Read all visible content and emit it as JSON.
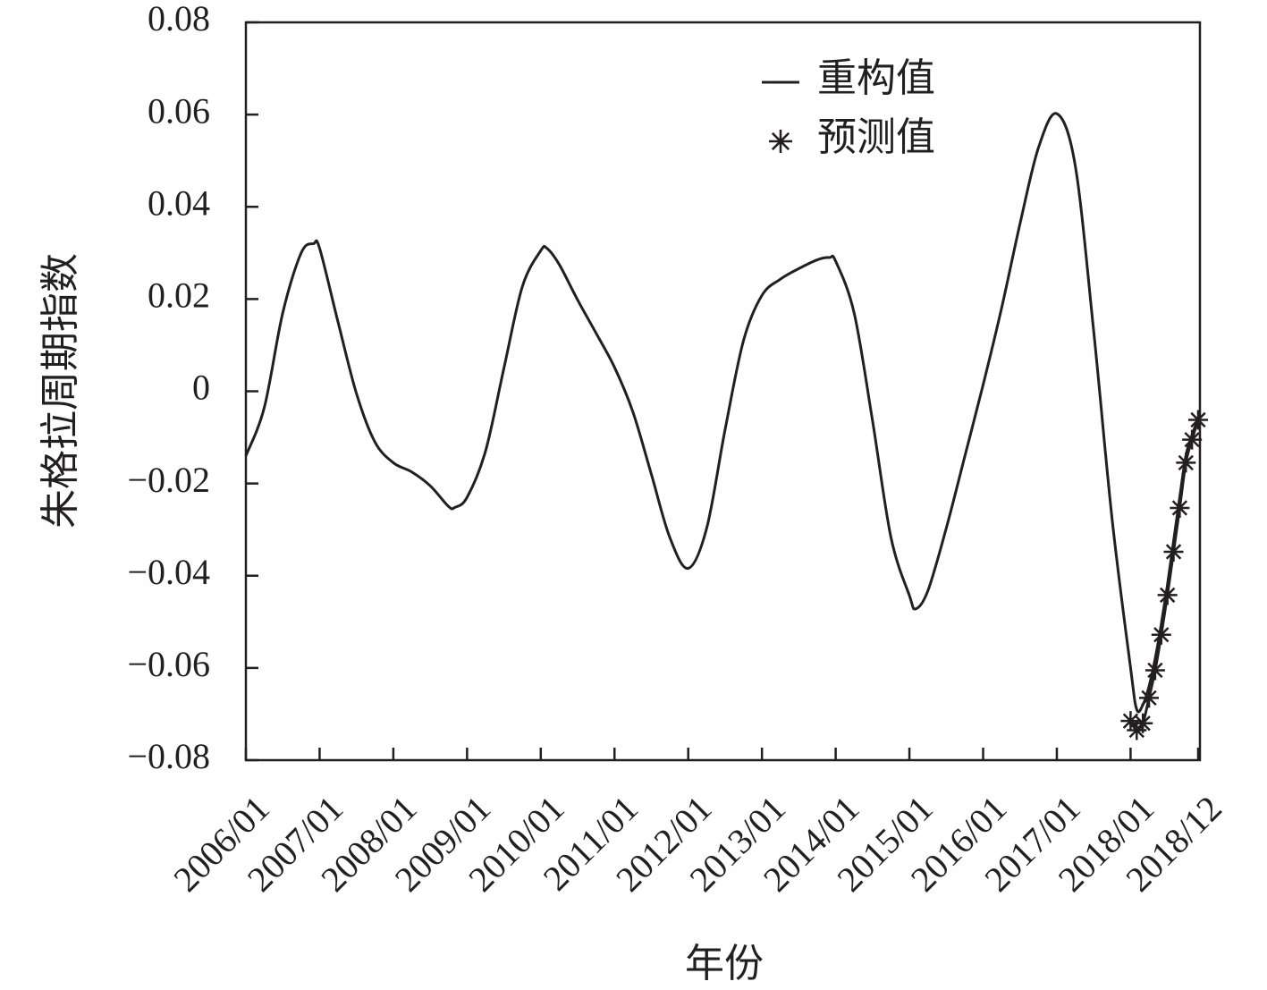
{
  "chart_data": {
    "type": "line",
    "x_label": "年份",
    "y_label": "朱格拉周期指数",
    "xlim": [
      "2006/01",
      "2018/12"
    ],
    "xticks": [
      "2006/01",
      "2007/01",
      "2008/01",
      "2009/01",
      "2010/01",
      "2011/01",
      "2012/01",
      "2013/01",
      "2014/01",
      "2015/01",
      "2016/01",
      "2017/01",
      "2018/01",
      "2018/12"
    ],
    "ylim": [
      -0.08,
      0.08
    ],
    "yticks": [
      {
        "value": -0.08,
        "label": "−0.08"
      },
      {
        "value": -0.06,
        "label": "−0.06"
      },
      {
        "value": -0.04,
        "label": "−0.04"
      },
      {
        "value": -0.02,
        "label": "−0.02"
      },
      0,
      0.02,
      0.04,
      0.06,
      0.08
    ],
    "legend": "upper right",
    "series": [
      {
        "name": "重构值",
        "color": "#231f20",
        "marker": "none",
        "x": [
          "2006/01",
          "2006/04",
          "2006/07",
          "2006/10",
          "2006/12",
          "2007/01",
          "2007/04",
          "2007/07",
          "2007/10",
          "2008/01",
          "2008/04",
          "2008/07",
          "2008/10",
          "2008/11",
          "2009/01",
          "2009/04",
          "2009/07",
          "2009/10",
          "2010/01",
          "2010/02",
          "2010/04",
          "2010/07",
          "2010/10",
          "2011/01",
          "2011/04",
          "2011/07",
          "2011/10",
          "2012/01",
          "2012/04",
          "2012/07",
          "2012/10",
          "2013/01",
          "2013/04",
          "2013/07",
          "2013/10",
          "2013/12",
          "2014/01",
          "2014/04",
          "2014/07",
          "2014/10",
          "2015/01",
          "2015/02",
          "2015/04",
          "2015/07",
          "2015/10",
          "2016/01",
          "2016/04",
          "2016/07",
          "2016/10",
          "2017/01",
          "2017/04",
          "2017/07",
          "2017/10",
          "2018/01",
          "2018/02",
          "2018/03",
          "2018/04",
          "2018/05",
          "2018/06",
          "2018/07",
          "2018/08",
          "2018/09",
          "2018/10",
          "2018/11",
          "2018/12"
        ],
        "values": [
          -0.014,
          -0.0035,
          0.017,
          0.03,
          0.032,
          0.031,
          0.015,
          -0.0005,
          -0.011,
          -0.0155,
          -0.0175,
          -0.0205,
          -0.025,
          -0.0252,
          -0.023,
          -0.013,
          0.005,
          0.0227,
          0.0305,
          0.031,
          0.0275,
          0.0198,
          0.0126,
          0.0052,
          -0.0045,
          -0.018,
          -0.0317,
          -0.0384,
          -0.0297,
          -0.0083,
          0.011,
          0.0208,
          0.0243,
          0.0266,
          0.0285,
          0.029,
          0.0282,
          0.017,
          -0.0064,
          -0.0317,
          -0.0443,
          -0.0472,
          -0.0433,
          -0.0297,
          -0.0142,
          0.0014,
          0.018,
          0.0363,
          0.0528,
          0.0602,
          0.0489,
          0.013,
          -0.0278,
          -0.06,
          -0.069,
          -0.068,
          -0.064,
          -0.058,
          -0.0505,
          -0.042,
          -0.0325,
          -0.023,
          -0.014,
          -0.0095,
          -0.006
        ]
      },
      {
        "name": "预测值",
        "color": "#231f20",
        "marker": "star",
        "x": [
          "2018/01",
          "2018/02",
          "2018/03",
          "2018/04",
          "2018/05",
          "2018/06",
          "2018/07",
          "2018/08",
          "2018/09",
          "2018/10",
          "2018/11",
          "2018/12"
        ],
        "values": [
          -0.0715,
          -0.0735,
          -0.072,
          -0.0665,
          -0.0605,
          -0.0528,
          -0.0442,
          -0.0348,
          -0.0253,
          -0.0155,
          -0.0105,
          -0.0062
        ]
      }
    ]
  }
}
